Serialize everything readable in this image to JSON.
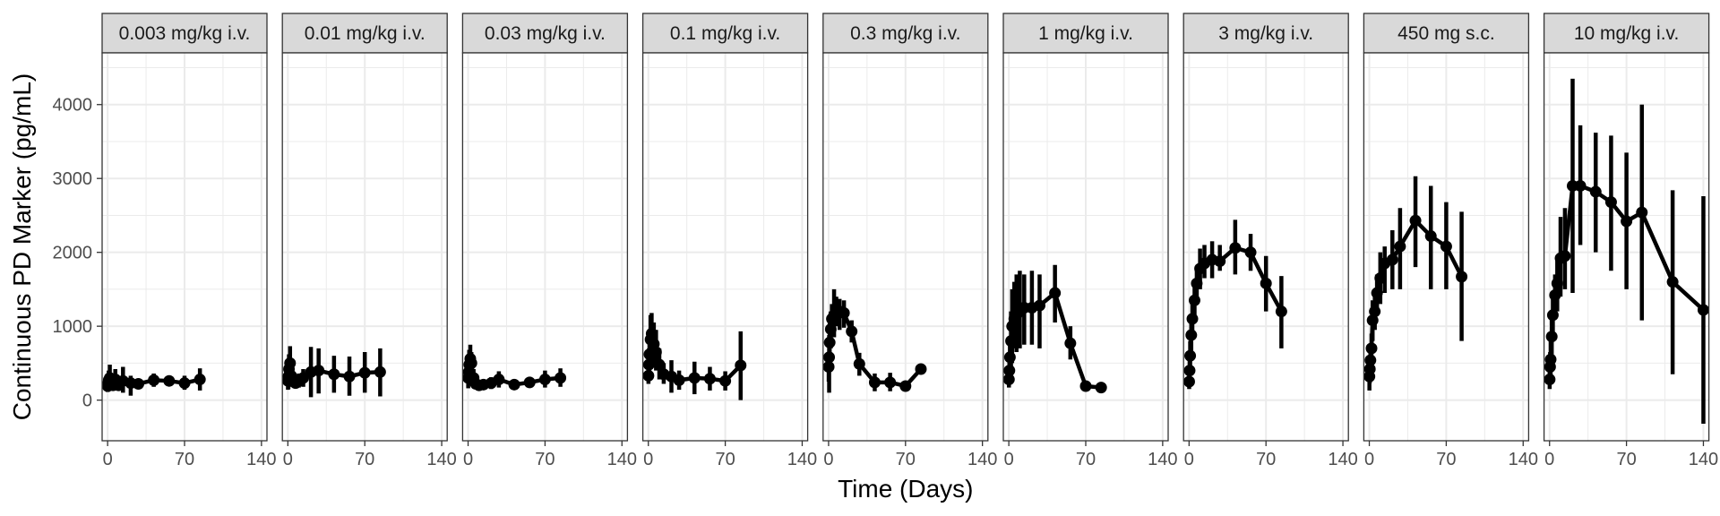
{
  "chart_data": {
    "type": "line",
    "xlabel": "Time (Days)",
    "ylabel": "Continuous PD Marker (pg/mL)",
    "xlim": [
      -5,
      145
    ],
    "ylim": [
      -550,
      4700
    ],
    "x_ticks": [
      0,
      70,
      140
    ],
    "x_ticks_minor": [
      35,
      105
    ],
    "y_ticks": [
      0,
      1000,
      2000,
      3000,
      4000
    ],
    "y_ticks_minor": [
      500,
      1500,
      2500,
      3500,
      4500
    ],
    "grid": true,
    "colors": {
      "series": "#000000",
      "strip_fill": "#d9d9d9",
      "grid": "#ebebeb",
      "panel_border": "#333333"
    },
    "panels": [
      {
        "label": "0.003 mg/kg i.v.",
        "points": [
          {
            "x": 0.1,
            "y": 190,
            "lo": 110,
            "hi": 300
          },
          {
            "x": 0.5,
            "y": 230,
            "lo": 130,
            "hi": 330
          },
          {
            "x": 1,
            "y": 270,
            "lo": 160,
            "hi": 400
          },
          {
            "x": 2,
            "y": 300,
            "lo": 160,
            "hi": 480
          },
          {
            "x": 3,
            "y": 230,
            "lo": 140,
            "hi": 350
          },
          {
            "x": 5,
            "y": 200,
            "lo": 140,
            "hi": 300
          },
          {
            "x": 7,
            "y": 280,
            "lo": 150,
            "hi": 420
          },
          {
            "x": 10,
            "y": 200,
            "lo": 140,
            "hi": 290
          },
          {
            "x": 14,
            "y": 260,
            "lo": 100,
            "hi": 450
          },
          {
            "x": 21,
            "y": 230,
            "lo": 60,
            "hi": 330
          },
          {
            "x": 28,
            "y": 220,
            "lo": 170,
            "hi": 280
          },
          {
            "x": 42,
            "y": 270,
            "lo": 180,
            "hi": 360
          },
          {
            "x": 56,
            "y": 260,
            "lo": 220,
            "hi": 300
          },
          {
            "x": 70,
            "y": 230,
            "lo": 140,
            "hi": 330
          },
          {
            "x": 84,
            "y": 280,
            "lo": 130,
            "hi": 430
          }
        ]
      },
      {
        "label": "0.01 mg/kg i.v.",
        "points": [
          {
            "x": 0.1,
            "y": 260,
            "lo": 140,
            "hi": 380
          },
          {
            "x": 0.5,
            "y": 320,
            "lo": 150,
            "hi": 480
          },
          {
            "x": 1,
            "y": 420,
            "lo": 200,
            "hi": 620
          },
          {
            "x": 2,
            "y": 500,
            "lo": 250,
            "hi": 730
          },
          {
            "x": 3,
            "y": 330,
            "lo": 180,
            "hi": 480
          },
          {
            "x": 5,
            "y": 270,
            "lo": 180,
            "hi": 370
          },
          {
            "x": 7,
            "y": 230,
            "lo": 160,
            "hi": 310
          },
          {
            "x": 10,
            "y": 260,
            "lo": 170,
            "hi": 360
          },
          {
            "x": 14,
            "y": 300,
            "lo": 180,
            "hi": 420
          },
          {
            "x": 21,
            "y": 380,
            "lo": 40,
            "hi": 720
          },
          {
            "x": 28,
            "y": 400,
            "lo": 90,
            "hi": 700
          },
          {
            "x": 42,
            "y": 350,
            "lo": 100,
            "hi": 600
          },
          {
            "x": 56,
            "y": 320,
            "lo": 60,
            "hi": 590
          },
          {
            "x": 70,
            "y": 370,
            "lo": 100,
            "hi": 650
          },
          {
            "x": 84,
            "y": 380,
            "lo": 50,
            "hi": 700
          }
        ]
      },
      {
        "label": "0.03 mg/kg i.v.",
        "points": [
          {
            "x": 0.1,
            "y": 300,
            "lo": 160,
            "hi": 440
          },
          {
            "x": 0.5,
            "y": 380,
            "lo": 200,
            "hi": 560
          },
          {
            "x": 1,
            "y": 480,
            "lo": 300,
            "hi": 680
          },
          {
            "x": 2,
            "y": 560,
            "lo": 360,
            "hi": 750
          },
          {
            "x": 3,
            "y": 500,
            "lo": 330,
            "hi": 650
          },
          {
            "x": 5,
            "y": 300,
            "lo": 190,
            "hi": 420
          },
          {
            "x": 7,
            "y": 220,
            "lo": 170,
            "hi": 290
          },
          {
            "x": 10,
            "y": 200,
            "lo": 150,
            "hi": 260
          },
          {
            "x": 14,
            "y": 210,
            "lo": 170,
            "hi": 260
          },
          {
            "x": 21,
            "y": 230,
            "lo": 150,
            "hi": 310
          },
          {
            "x": 28,
            "y": 280,
            "lo": 170,
            "hi": 390
          },
          {
            "x": 42,
            "y": 210,
            "lo": 150,
            "hi": 280
          },
          {
            "x": 56,
            "y": 240,
            "lo": 180,
            "hi": 300
          },
          {
            "x": 70,
            "y": 280,
            "lo": 170,
            "hi": 400
          },
          {
            "x": 84,
            "y": 300,
            "lo": 180,
            "hi": 430
          }
        ]
      },
      {
        "label": "0.1 mg/kg i.v.",
        "points": [
          {
            "x": 0.1,
            "y": 330,
            "lo": 220,
            "hi": 450
          },
          {
            "x": 0.5,
            "y": 480,
            "lo": 300,
            "hi": 700
          },
          {
            "x": 1,
            "y": 620,
            "lo": 400,
            "hi": 880
          },
          {
            "x": 2,
            "y": 820,
            "lo": 500,
            "hi": 1150
          },
          {
            "x": 3,
            "y": 900,
            "lo": 620,
            "hi": 1180
          },
          {
            "x": 5,
            "y": 760,
            "lo": 480,
            "hi": 1050
          },
          {
            "x": 7,
            "y": 650,
            "lo": 400,
            "hi": 950
          },
          {
            "x": 10,
            "y": 480,
            "lo": 280,
            "hi": 700
          },
          {
            "x": 14,
            "y": 350,
            "lo": 220,
            "hi": 500
          },
          {
            "x": 21,
            "y": 320,
            "lo": 100,
            "hi": 540
          },
          {
            "x": 28,
            "y": 270,
            "lo": 140,
            "hi": 400
          },
          {
            "x": 42,
            "y": 300,
            "lo": 80,
            "hi": 520
          },
          {
            "x": 56,
            "y": 290,
            "lo": 130,
            "hi": 450
          },
          {
            "x": 70,
            "y": 260,
            "lo": 130,
            "hi": 390
          },
          {
            "x": 84,
            "y": 470,
            "lo": 0,
            "hi": 930
          }
        ]
      },
      {
        "label": "0.3 mg/kg i.v.",
        "points": [
          {
            "x": 0.1,
            "y": 450,
            "lo": 250,
            "hi": 650
          },
          {
            "x": 0.5,
            "y": 580,
            "lo": 100,
            "hi": 880
          },
          {
            "x": 1,
            "y": 780,
            "lo": 500,
            "hi": 1050
          },
          {
            "x": 2,
            "y": 960,
            "lo": 700,
            "hi": 1200
          },
          {
            "x": 3,
            "y": 1100,
            "lo": 850,
            "hi": 1300
          },
          {
            "x": 5,
            "y": 1150,
            "lo": 850,
            "hi": 1500
          },
          {
            "x": 7,
            "y": 1200,
            "lo": 1000,
            "hi": 1400
          },
          {
            "x": 10,
            "y": 1200,
            "lo": 950,
            "hi": 1370
          },
          {
            "x": 14,
            "y": 1180,
            "lo": 980,
            "hi": 1350
          },
          {
            "x": 21,
            "y": 930,
            "lo": 780,
            "hi": 1080
          },
          {
            "x": 28,
            "y": 490,
            "lo": 330,
            "hi": 640
          },
          {
            "x": 42,
            "y": 240,
            "lo": 120,
            "hi": 360
          },
          {
            "x": 56,
            "y": 240,
            "lo": 120,
            "hi": 370
          },
          {
            "x": 70,
            "y": 190,
            "lo": 120,
            "hi": 260
          },
          {
            "x": 84,
            "y": 420,
            "lo": 380,
            "hi": 460
          }
        ]
      },
      {
        "label": "1 mg/kg i.v.",
        "points": [
          {
            "x": 0.1,
            "y": 280,
            "lo": 170,
            "hi": 400
          },
          {
            "x": 0.5,
            "y": 400,
            "lo": 230,
            "hi": 580
          },
          {
            "x": 1,
            "y": 580,
            "lo": 350,
            "hi": 800
          },
          {
            "x": 2,
            "y": 800,
            "lo": 300,
            "hi": 1200
          },
          {
            "x": 3,
            "y": 1000,
            "lo": 500,
            "hi": 1500
          },
          {
            "x": 5,
            "y": 1100,
            "lo": 700,
            "hi": 1600
          },
          {
            "x": 7,
            "y": 1150,
            "lo": 650,
            "hi": 1700
          },
          {
            "x": 10,
            "y": 1200,
            "lo": 700,
            "hi": 1750
          },
          {
            "x": 14,
            "y": 1250,
            "lo": 750,
            "hi": 1700
          },
          {
            "x": 21,
            "y": 1250,
            "lo": 750,
            "hi": 1750
          },
          {
            "x": 28,
            "y": 1280,
            "lo": 700,
            "hi": 1700
          },
          {
            "x": 42,
            "y": 1450,
            "lo": 1050,
            "hi": 1830
          },
          {
            "x": 56,
            "y": 770,
            "lo": 550,
            "hi": 1000
          },
          {
            "x": 70,
            "y": 190,
            "lo": 150,
            "hi": 230
          },
          {
            "x": 84,
            "y": 170,
            "lo": 140,
            "hi": 200
          }
        ]
      },
      {
        "label": "3 mg/kg i.v.",
        "points": [
          {
            "x": 0.1,
            "y": 250,
            "lo": 150,
            "hi": 350
          },
          {
            "x": 0.5,
            "y": 400,
            "lo": 250,
            "hi": 550
          },
          {
            "x": 1,
            "y": 600,
            "lo": 400,
            "hi": 800
          },
          {
            "x": 2,
            "y": 880,
            "lo": 650,
            "hi": 1100
          },
          {
            "x": 3,
            "y": 1100,
            "lo": 850,
            "hi": 1350
          },
          {
            "x": 5,
            "y": 1350,
            "lo": 1100,
            "hi": 1600
          },
          {
            "x": 7,
            "y": 1580,
            "lo": 1350,
            "hi": 1800
          },
          {
            "x": 10,
            "y": 1780,
            "lo": 1500,
            "hi": 2050
          },
          {
            "x": 14,
            "y": 1850,
            "lo": 1650,
            "hi": 2100
          },
          {
            "x": 21,
            "y": 1900,
            "lo": 1650,
            "hi": 2150
          },
          {
            "x": 28,
            "y": 1880,
            "lo": 1750,
            "hi": 2100
          },
          {
            "x": 42,
            "y": 2060,
            "lo": 1700,
            "hi": 2440
          },
          {
            "x": 56,
            "y": 2000,
            "lo": 1750,
            "hi": 2250
          },
          {
            "x": 70,
            "y": 1580,
            "lo": 1200,
            "hi": 1950
          },
          {
            "x": 84,
            "y": 1200,
            "lo": 700,
            "hi": 1680
          }
        ]
      },
      {
        "label": "450 mg s.c.",
        "points": [
          {
            "x": 0.1,
            "y": 320,
            "lo": 130,
            "hi": 500
          },
          {
            "x": 0.5,
            "y": 420,
            "lo": 230,
            "hi": 600
          },
          {
            "x": 1,
            "y": 540,
            "lo": 350,
            "hi": 750
          },
          {
            "x": 2,
            "y": 700,
            "lo": 500,
            "hi": 900
          },
          {
            "x": 3,
            "y": 1080,
            "lo": 800,
            "hi": 1350
          },
          {
            "x": 5,
            "y": 1200,
            "lo": 950,
            "hi": 1450
          },
          {
            "x": 7,
            "y": 1450,
            "lo": 1200,
            "hi": 1700
          },
          {
            "x": 10,
            "y": 1650,
            "lo": 1300,
            "hi": 2000
          },
          {
            "x": 14,
            "y": 1850,
            "lo": 1450,
            "hi": 2080
          },
          {
            "x": 21,
            "y": 1900,
            "lo": 1500,
            "hi": 2300
          },
          {
            "x": 28,
            "y": 2080,
            "lo": 1500,
            "hi": 2600
          },
          {
            "x": 42,
            "y": 2430,
            "lo": 1800,
            "hi": 3030
          },
          {
            "x": 56,
            "y": 2220,
            "lo": 1500,
            "hi": 2900
          },
          {
            "x": 70,
            "y": 2080,
            "lo": 1500,
            "hi": 2680
          },
          {
            "x": 84,
            "y": 1670,
            "lo": 800,
            "hi": 2550
          }
        ]
      },
      {
        "label": "10 mg/kg i.v.",
        "points": [
          {
            "x": 0.1,
            "y": 280,
            "lo": 150,
            "hi": 420
          },
          {
            "x": 0.5,
            "y": 450,
            "lo": 250,
            "hi": 650
          },
          {
            "x": 1,
            "y": 550,
            "lo": 300,
            "hi": 800
          },
          {
            "x": 2,
            "y": 860,
            "lo": 600,
            "hi": 1150
          },
          {
            "x": 3,
            "y": 1150,
            "lo": 850,
            "hi": 1450
          },
          {
            "x": 5,
            "y": 1420,
            "lo": 1100,
            "hi": 1700
          },
          {
            "x": 7,
            "y": 1580,
            "lo": 1200,
            "hi": 1950
          },
          {
            "x": 10,
            "y": 1920,
            "lo": 1400,
            "hi": 2480
          },
          {
            "x": 14,
            "y": 1950,
            "lo": 1500,
            "hi": 2600
          },
          {
            "x": 21,
            "y": 2900,
            "lo": 1450,
            "hi": 4350
          },
          {
            "x": 28,
            "y": 2900,
            "lo": 2100,
            "hi": 3720
          },
          {
            "x": 42,
            "y": 2820,
            "lo": 2000,
            "hi": 3620
          },
          {
            "x": 56,
            "y": 2680,
            "lo": 1750,
            "hi": 3580
          },
          {
            "x": 70,
            "y": 2420,
            "lo": 1500,
            "hi": 3350
          },
          {
            "x": 84,
            "y": 2540,
            "lo": 1080,
            "hi": 4000
          },
          {
            "x": 112,
            "y": 1600,
            "lo": 350,
            "hi": 2840
          },
          {
            "x": 140,
            "y": 1220,
            "lo": -320,
            "hi": 2760
          }
        ]
      }
    ]
  }
}
